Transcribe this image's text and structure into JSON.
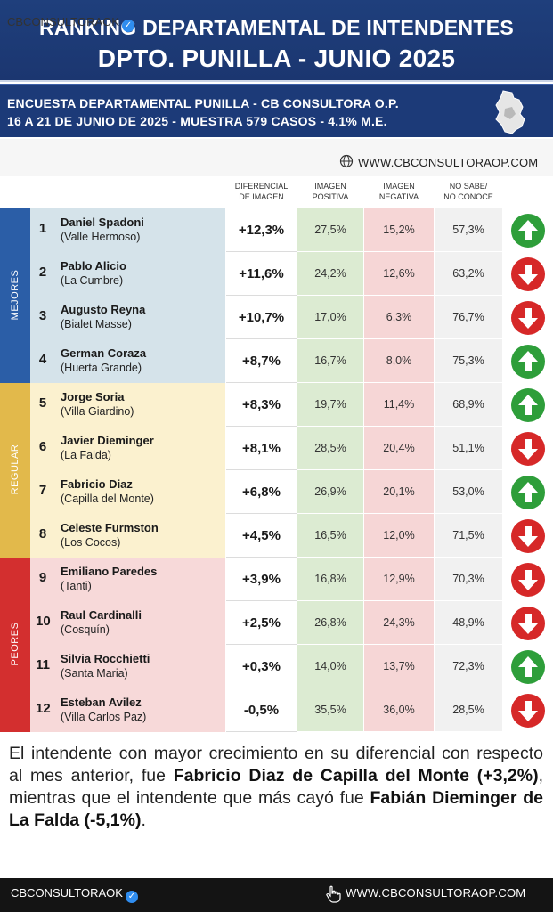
{
  "header": {
    "title_line1": "RANKING DEPARTAMENTAL DE INTENDENTES",
    "title_line2": "DPTO. PUNILLA - JUNIO 2025"
  },
  "subheader": {
    "line1": "ENCUESTA DEPARTAMENTAL PUNILLA - CB CONSULTORA O.P.",
    "line2": "16 A 21 DE JUNIO  DE 2025 - MUESTRA 579 CASOS - 4.1% M.E.",
    "map_icon": "department-map-icon"
  },
  "brand": {
    "handle": "CBCONSULTORAOK",
    "website": "WWW.CBCONSULTORAOP.COM",
    "verified_icon": "verified-badge-icon",
    "globe_icon": "globe-icon"
  },
  "columns": {
    "diff": [
      "DIFERENCIAL",
      "DE IMAGEN"
    ],
    "pos": [
      "IMAGEN",
      "POSITIVA"
    ],
    "neg": [
      "IMAGEN",
      "NEGATIVA"
    ],
    "ns": [
      "NO SABE/",
      "NO CONOCE"
    ]
  },
  "groups": [
    {
      "label": "MEJORES",
      "color": "#2b5ea7",
      "bg": "#d5e3ea"
    },
    {
      "label": "REGULAR",
      "color": "#e2b94b",
      "bg": "#fbf1cf"
    },
    {
      "label": "PEORES",
      "color": "#d32f2f",
      "bg": "#f7d9d9"
    }
  ],
  "rows": [
    {
      "rank": "1",
      "name": "Daniel Spadoni",
      "town": "(Valle Hermoso)",
      "diff": "+12,3%",
      "pos": "27,5%",
      "neg": "15,2%",
      "ns": "57,3%",
      "trend": "up"
    },
    {
      "rank": "2",
      "name": "Pablo Alicio",
      "town": "(La Cumbre)",
      "diff": "+11,6%",
      "pos": "24,2%",
      "neg": "12,6%",
      "ns": "63,2%",
      "trend": "down"
    },
    {
      "rank": "3",
      "name": "Augusto Reyna",
      "town": "(Bialet Masse)",
      "diff": "+10,7%",
      "pos": "17,0%",
      "neg": "6,3%",
      "ns": "76,7%",
      "trend": "down"
    },
    {
      "rank": "4",
      "name": "German Coraza",
      "town": "(Huerta Grande)",
      "diff": "+8,7%",
      "pos": "16,7%",
      "neg": "8,0%",
      "ns": "75,3%",
      "trend": "up"
    },
    {
      "rank": "5",
      "name": "Jorge Soria",
      "town": "(Villa Giardino)",
      "diff": "+8,3%",
      "pos": "19,7%",
      "neg": "11,4%",
      "ns": "68,9%",
      "trend": "up"
    },
    {
      "rank": "6",
      "name": "Javier Dieminger",
      "town": "(La Falda)",
      "diff": "+8,1%",
      "pos": "28,5%",
      "neg": "20,4%",
      "ns": "51,1%",
      "trend": "down"
    },
    {
      "rank": "7",
      "name": "Fabricio Diaz",
      "town": "(Capilla del Monte)",
      "diff": "+6,8%",
      "pos": "26,9%",
      "neg": "20,1%",
      "ns": "53,0%",
      "trend": "up"
    },
    {
      "rank": "8",
      "name": "Celeste Furmston",
      "town": "(Los Cocos)",
      "diff": "+4,5%",
      "pos": "16,5%",
      "neg": "12,0%",
      "ns": "71,5%",
      "trend": "down"
    },
    {
      "rank": "9",
      "name": "Emiliano Paredes",
      "town": "(Tanti)",
      "diff": "+3,9%",
      "pos": "16,8%",
      "neg": "12,9%",
      "ns": "70,3%",
      "trend": "down"
    },
    {
      "rank": "10",
      "name": "Raul Cardinalli",
      "town": "(Cosquín)",
      "diff": "+2,5%",
      "pos": "26,8%",
      "neg": "24,3%",
      "ns": "48,9%",
      "trend": "down"
    },
    {
      "rank": "11",
      "name": "Silvia Rocchietti",
      "town": "(Santa Maria)",
      "diff": "+0,3%",
      "pos": "14,0%",
      "neg": "13,7%",
      "ns": "72,3%",
      "trend": "up"
    },
    {
      "rank": "12",
      "name": "Esteban Avilez",
      "town": "(Villa Carlos Paz)",
      "diff": "-0,5%",
      "pos": "35,5%",
      "neg": "36,0%",
      "ns": "28,5%",
      "trend": "down"
    }
  ],
  "trend_colors": {
    "up": "#2e9e3a",
    "down": "#d62828"
  },
  "summary": {
    "p1": "El intendente con mayor crecimiento en su diferencial con respecto al mes anterior, fue ",
    "b1": "Fabricio Diaz de Capilla del Monte (+3,2%)",
    "p2": ", mientras que el intendente que más cayó fue ",
    "b2": "Fabián Dieminger de La Falda (-5,1%)",
    "p3": "."
  },
  "footer": {
    "handle": "CBCONSULTORAOK",
    "website": "WWW.CBCONSULTORAOP.COM",
    "verified_icon": "verified-badge-icon",
    "hand_icon": "pointer-hand-icon"
  }
}
